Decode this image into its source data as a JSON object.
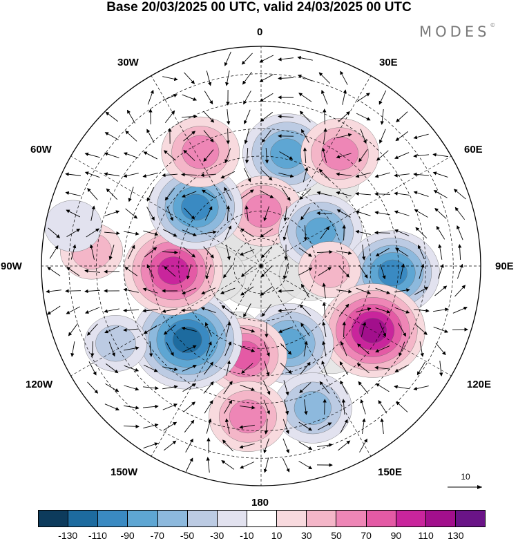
{
  "title": "Base 20/03/2025 00 UTC, valid 24/03/2025 00 UTC",
  "brand": "MODES",
  "brand_mark": "©",
  "longitude_labels": [
    {
      "id": "lon-0",
      "text": "0"
    },
    {
      "id": "lon-30e",
      "text": "30E"
    },
    {
      "id": "lon-60e",
      "text": "60E"
    },
    {
      "id": "lon-90e",
      "text": "90E"
    },
    {
      "id": "lon-120e",
      "text": "120E"
    },
    {
      "id": "lon-150e",
      "text": "150E"
    },
    {
      "id": "lon-180",
      "text": "180"
    },
    {
      "id": "lon-150w",
      "text": "150W"
    },
    {
      "id": "lon-120w",
      "text": "120W"
    },
    {
      "id": "lon-90w",
      "text": "90W"
    },
    {
      "id": "lon-60w",
      "text": "60W"
    },
    {
      "id": "lon-30w",
      "text": "30W"
    }
  ],
  "reference_vector": {
    "value": "10"
  },
  "colorbar": {
    "colors": [
      "#0d3b5c",
      "#1d6b9f",
      "#3a8ac2",
      "#5ea6d3",
      "#8db9dd",
      "#bccbe3",
      "#e2e2ef",
      "#ffffff",
      "#f8dade",
      "#f4b6c8",
      "#ee86b6",
      "#e45aa5",
      "#c9259c",
      "#a20f8c",
      "#6a1487"
    ],
    "labels": [
      "-130",
      "-110",
      "-90",
      "-70",
      "-50",
      "-30",
      "-10",
      "10",
      "30",
      "50",
      "70",
      "90",
      "110",
      "130"
    ]
  },
  "anomalies": [
    {
      "name": "low-north-atlantic",
      "lon": 13,
      "colat": 42,
      "value": -90
    },
    {
      "name": "high-europe",
      "lon": 35,
      "colat": 50,
      "value": 70
    },
    {
      "name": "high-north-atlantic",
      "lon": 2,
      "colat": 20,
      "value": 70
    },
    {
      "name": "low-ural",
      "lon": 60,
      "colat": 25,
      "value": -80
    },
    {
      "name": "low-siberia",
      "lon": 93,
      "colat": 48,
      "value": -100
    },
    {
      "name": "high-central-asia",
      "lon": 93,
      "colat": 25,
      "value": 40
    },
    {
      "name": "high-far-east",
      "lon": 120,
      "colat": 47,
      "value": 120
    },
    {
      "name": "low-bering",
      "lon": 160,
      "colat": 30,
      "value": -90
    },
    {
      "name": "low-bering-south",
      "lon": 160,
      "colat": 55,
      "value": -70
    },
    {
      "name": "high-north-pacific",
      "lon": 190,
      "colat": 33,
      "value": 80
    },
    {
      "name": "high-north-pacific-south",
      "lon": 185,
      "colat": 55,
      "value": 70
    },
    {
      "name": "low-alaska",
      "lon": 225,
      "colat": 38,
      "value": -130
    },
    {
      "name": "high-canada",
      "lon": 267,
      "colat": 32,
      "value": 110
    },
    {
      "name": "low-hudson",
      "lon": 312,
      "colat": 32,
      "value": -100
    },
    {
      "name": "high-greenland-sea",
      "lon": 332,
      "colat": 47,
      "value": 70
    },
    {
      "name": "low-pacific-east",
      "lon": 242,
      "colat": 60,
      "value": -40
    },
    {
      "name": "high-atlantic-west",
      "lon": 275,
      "colat": 62,
      "value": 40
    },
    {
      "name": "low-atlantic-far",
      "lon": 282,
      "colat": 70,
      "value": -30
    }
  ],
  "land": [
    {
      "name": "arctic-ice-center",
      "lon": 0,
      "colat": 0,
      "r": 0.36
    },
    {
      "name": "greenland",
      "lon": 320,
      "colat": 15,
      "r": 0.23
    },
    {
      "name": "scandinavia",
      "lon": 22,
      "colat": 23,
      "r": 0.14
    },
    {
      "name": "siberia-north",
      "lon": 100,
      "colat": 18,
      "r": 0.22
    },
    {
      "name": "alaska",
      "lon": 200,
      "colat": 25,
      "r": 0.16
    },
    {
      "name": "canada-arctic",
      "lon": 260,
      "colat": 18,
      "r": 0.24
    },
    {
      "name": "europe-land",
      "lon": 40,
      "colat": 40,
      "r": 0.2
    },
    {
      "name": "far-east-land",
      "lon": 140,
      "colat": 40,
      "r": 0.2
    }
  ]
}
